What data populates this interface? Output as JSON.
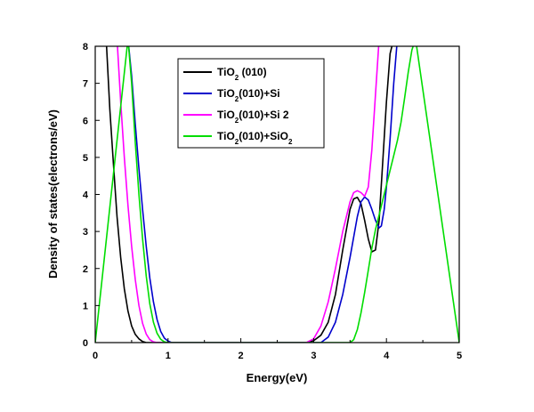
{
  "chart_data": {
    "type": "line",
    "title": "",
    "xlabel": "Energy(eV)",
    "ylabel": "Density of states(electrons/eV)",
    "xlim": [
      0,
      5
    ],
    "ylim": [
      0,
      8
    ],
    "xticks": [
      "0",
      "1",
      "2",
      "3",
      "4",
      "5"
    ],
    "yticks": [
      "0",
      "1",
      "2",
      "3",
      "4",
      "5",
      "6",
      "7",
      "8"
    ],
    "grid": false,
    "legend_position": "top-center",
    "series": [
      {
        "name": "TiO2 (010)",
        "legend": {
          "main": "TiO",
          "sub": "2",
          "rest": " (010)",
          "sub2": "",
          "rest2": ""
        },
        "color": "#000000",
        "x": [
          0.15,
          0.2,
          0.25,
          0.3,
          0.35,
          0.4,
          0.45,
          0.5,
          0.55,
          0.6,
          0.65,
          0.7,
          2.9,
          3.0,
          3.1,
          3.2,
          3.3,
          3.4,
          3.5,
          3.55,
          3.6,
          3.65,
          3.7,
          3.75,
          3.8,
          3.85,
          3.9,
          3.95,
          4.0,
          4.05,
          4.1
        ],
        "y": [
          8.2,
          6.3,
          4.8,
          3.4,
          2.3,
          1.45,
          0.85,
          0.45,
          0.22,
          0.1,
          0.03,
          0.0,
          0.0,
          0.05,
          0.2,
          0.55,
          1.3,
          2.5,
          3.6,
          3.88,
          3.92,
          3.75,
          3.3,
          2.8,
          2.45,
          2.5,
          3.3,
          4.9,
          6.5,
          7.8,
          8.2
        ]
      },
      {
        "name": "TiO2(010)+Si",
        "legend": {
          "main": "TiO",
          "sub": "2",
          "rest": "(010)+Si",
          "sub2": "",
          "rest2": ""
        },
        "color": "#0000cc",
        "x": [
          0.45,
          0.5,
          0.55,
          0.6,
          0.65,
          0.7,
          0.75,
          0.8,
          0.85,
          0.9,
          0.95,
          1.0,
          1.05,
          3.1,
          3.2,
          3.3,
          3.4,
          3.5,
          3.6,
          3.65,
          3.7,
          3.75,
          3.8,
          3.85,
          3.9,
          3.93,
          3.97,
          4.0,
          4.05,
          4.1,
          4.15
        ],
        "y": [
          8.2,
          7.2,
          5.9,
          4.7,
          3.6,
          2.6,
          1.75,
          1.1,
          0.62,
          0.3,
          0.12,
          0.04,
          0.0,
          0.0,
          0.15,
          0.55,
          1.3,
          2.3,
          3.4,
          3.8,
          3.93,
          3.85,
          3.6,
          3.3,
          3.1,
          3.15,
          3.6,
          4.2,
          5.5,
          7.0,
          8.2
        ]
      },
      {
        "name": "TiO2(010)+Si 2",
        "legend": {
          "main": "TiO",
          "sub": "2",
          "rest": "(010)+Si 2",
          "sub2": "",
          "rest2": ""
        },
        "color": "#ff00ff",
        "x": [
          0.3,
          0.35,
          0.4,
          0.45,
          0.5,
          0.55,
          0.6,
          0.65,
          0.7,
          0.75,
          0.8,
          0.85,
          2.9,
          3.0,
          3.1,
          3.2,
          3.3,
          3.4,
          3.5,
          3.55,
          3.6,
          3.65,
          3.7,
          3.75,
          3.8,
          3.85,
          3.9
        ],
        "y": [
          8.2,
          6.5,
          5.0,
          3.7,
          2.6,
          1.7,
          1.0,
          0.52,
          0.23,
          0.08,
          0.02,
          0.0,
          0.0,
          0.1,
          0.45,
          1.1,
          2.0,
          3.0,
          3.8,
          4.05,
          4.1,
          4.05,
          3.95,
          4.2,
          5.2,
          6.7,
          8.2
        ]
      },
      {
        "name": "TiO2(010)+SiO2",
        "legend": {
          "main": "TiO",
          "sub": "2",
          "rest": "(010)+SiO",
          "sub2": "2",
          "rest2": ""
        },
        "color": "#00dd00",
        "x": [
          0.0,
          0.45,
          0.5,
          0.55,
          0.6,
          0.65,
          0.7,
          0.75,
          0.8,
          0.85,
          0.9,
          0.95,
          1.0,
          3.5,
          3.55,
          3.6,
          3.65,
          3.7,
          3.75,
          3.8,
          3.85,
          3.9,
          3.95,
          4.0,
          4.05,
          4.1,
          4.15,
          4.2,
          4.25,
          4.3,
          4.35,
          4.4,
          5.0
        ],
        "y": [
          0.0,
          8.2,
          7.0,
          5.4,
          4.0,
          2.8,
          1.8,
          1.05,
          0.55,
          0.25,
          0.09,
          0.02,
          0.0,
          0.0,
          0.08,
          0.35,
          0.8,
          1.35,
          1.95,
          2.55,
          3.05,
          3.45,
          3.85,
          4.25,
          4.65,
          5.05,
          5.45,
          5.95,
          6.6,
          7.3,
          7.9,
          8.2,
          0.0
        ]
      }
    ]
  }
}
